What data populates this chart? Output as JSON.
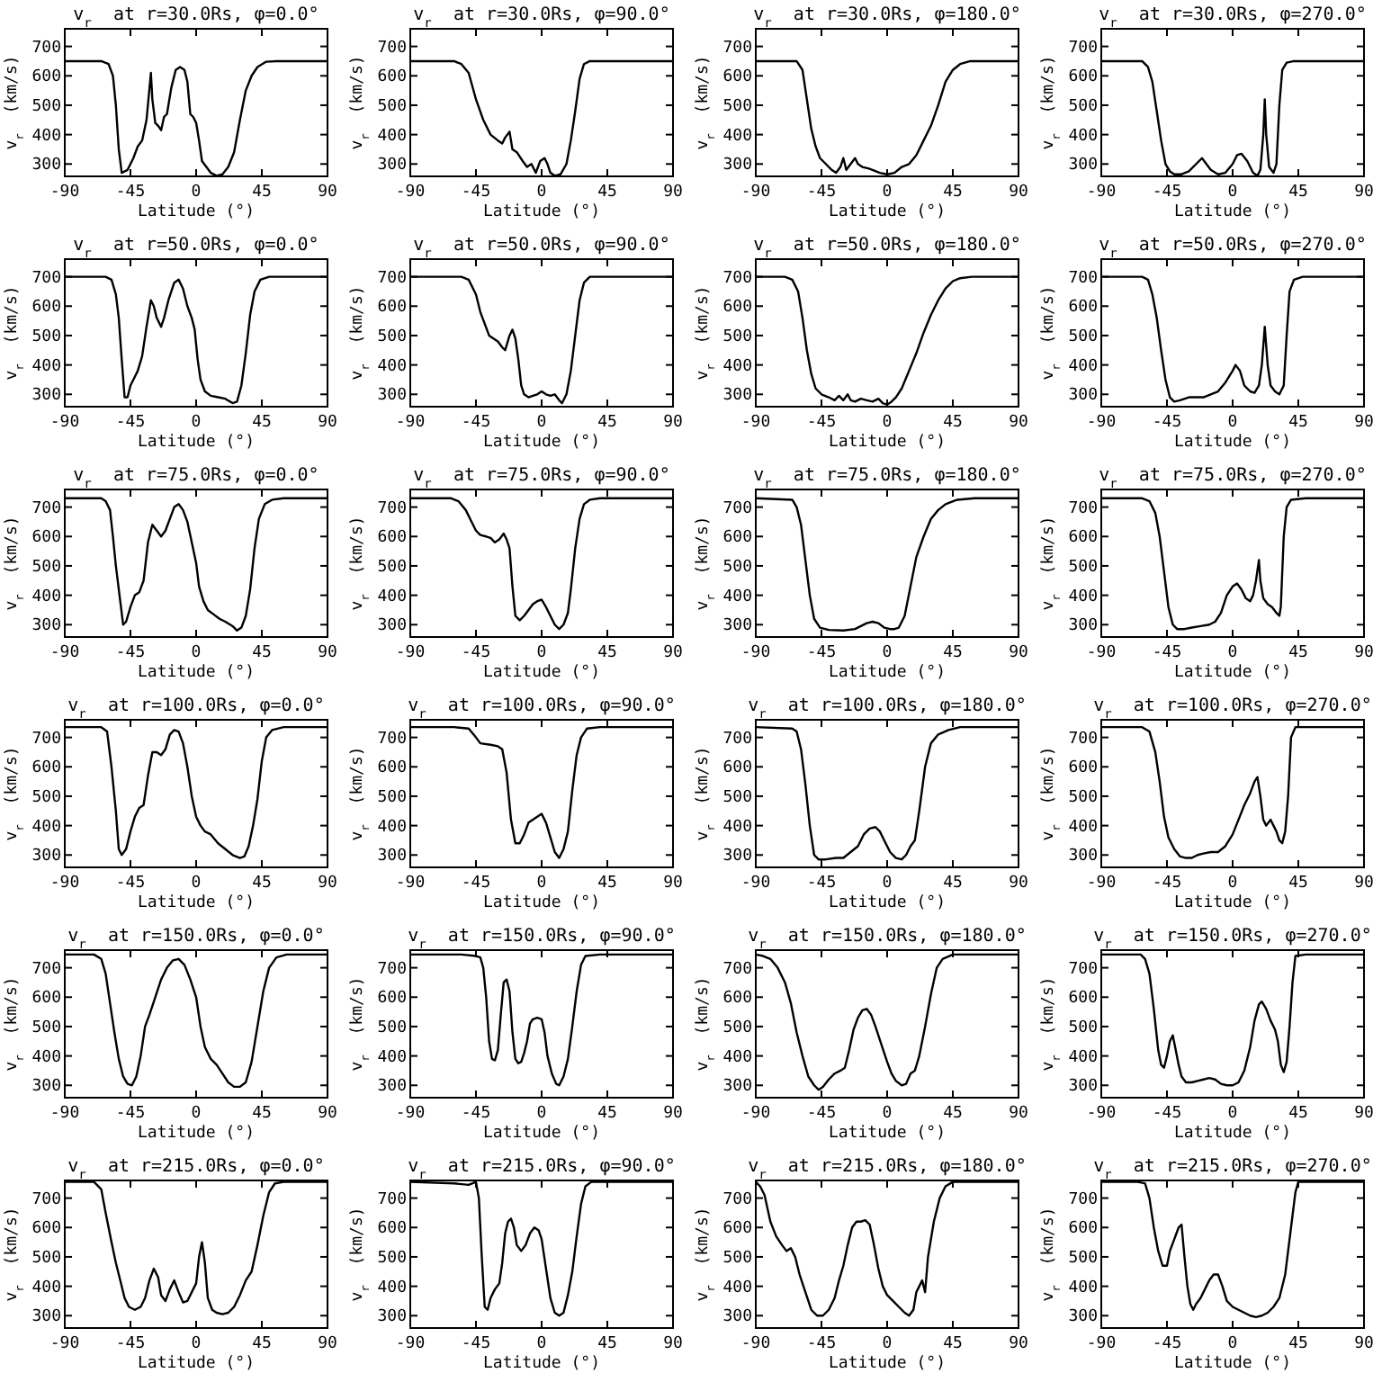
{
  "chart_data": [
    {
      "type": "line",
      "title": "v$_{r}$ at r=30.0Rs, φ=0.0°",
      "xlabel": "Latitude (°)",
      "ylabel": "v$_{r}$ (km/s)",
      "color": "#000000",
      "xlim": [
        -90,
        90
      ],
      "ylim": [
        258,
        760
      ],
      "xticks": [
        -90,
        -45,
        0,
        45,
        90
      ],
      "yticks": [
        300,
        400,
        500,
        600,
        700
      ],
      "x": [
        -90,
        -65,
        -60,
        -57,
        -55,
        -53,
        -51,
        -47,
        -43,
        -40,
        -37,
        -34,
        -31,
        -30,
        -28,
        -26,
        -24,
        -22,
        -20,
        -17,
        -14,
        -11,
        -8,
        -6,
        -4,
        -2,
        0,
        2,
        4,
        7,
        10,
        14,
        18,
        22,
        26,
        30,
        34,
        38,
        42,
        48,
        55,
        90
      ],
      "values": [
        650,
        650,
        640,
        600,
        500,
        350,
        270,
        280,
        320,
        360,
        380,
        450,
        610,
        520,
        440,
        430,
        415,
        460,
        470,
        560,
        620,
        630,
        620,
        580,
        470,
        460,
        440,
        380,
        310,
        290,
        270,
        260,
        265,
        290,
        340,
        450,
        550,
        600,
        630,
        648,
        650,
        650
      ]
    },
    {
      "type": "line",
      "title": "v$_{r}$ at r=30.0Rs, φ=90.0°",
      "xlabel": "Latitude (°)",
      "ylabel": "v$_{r}$ (km/s)",
      "color": "#000000",
      "xlim": [
        -90,
        90
      ],
      "ylim": [
        258,
        760
      ],
      "xticks": [
        -90,
        -45,
        0,
        45,
        90
      ],
      "yticks": [
        300,
        400,
        500,
        600,
        700
      ],
      "x": [
        -90,
        -60,
        -55,
        -50,
        -45,
        -40,
        -35,
        -30,
        -27,
        -25,
        -22,
        -20,
        -17,
        -13,
        -10,
        -7,
        -4,
        -1,
        2,
        4,
        6,
        9,
        13,
        17,
        20,
        23,
        26,
        29,
        33,
        90
      ],
      "values": [
        650,
        650,
        640,
        610,
        520,
        450,
        400,
        380,
        370,
        390,
        410,
        350,
        340,
        310,
        290,
        300,
        270,
        310,
        320,
        300,
        270,
        260,
        265,
        300,
        380,
        480,
        590,
        640,
        650,
        650
      ]
    },
    {
      "type": "line",
      "title": "v$_{r}$ at r=30.0Rs, φ=180.0°",
      "xlabel": "Latitude (°)",
      "ylabel": "v$_{r}$ (km/s)",
      "color": "#000000",
      "xlim": [
        -90,
        90
      ],
      "ylim": [
        258,
        760
      ],
      "xticks": [
        -90,
        -45,
        0,
        45,
        90
      ],
      "yticks": [
        300,
        400,
        500,
        600,
        700
      ],
      "x": [
        -90,
        -62,
        -58,
        -55,
        -52,
        -49,
        -46,
        -42,
        -38,
        -35,
        -32,
        -30,
        -28,
        -25,
        -22,
        -20,
        -17,
        -13,
        -10,
        -5,
        0,
        5,
        10,
        15,
        20,
        25,
        30,
        35,
        40,
        45,
        50,
        57,
        90
      ],
      "values": [
        650,
        650,
        620,
        520,
        420,
        360,
        320,
        300,
        280,
        270,
        290,
        320,
        280,
        300,
        320,
        300,
        290,
        285,
        280,
        270,
        265,
        270,
        290,
        300,
        330,
        380,
        430,
        500,
        580,
        620,
        640,
        650,
        650
      ]
    },
    {
      "type": "line",
      "title": "v$_{r}$ at r=30.0Rs, φ=270.0°",
      "xlabel": "Latitude (°)",
      "ylabel": "v$_{r}$ (km/s)",
      "color": "#000000",
      "xlim": [
        -90,
        90
      ],
      "ylim": [
        258,
        760
      ],
      "xticks": [
        -90,
        -45,
        0,
        45,
        90
      ],
      "yticks": [
        300,
        400,
        500,
        600,
        700
      ],
      "x": [
        -90,
        -62,
        -58,
        -55,
        -52,
        -49,
        -46,
        -43,
        -40,
        -35,
        -30,
        -25,
        -21,
        -18,
        -15,
        -10,
        -5,
        0,
        3,
        6,
        10,
        14,
        17,
        19,
        21,
        22,
        23,
        25,
        28,
        30,
        32,
        34,
        37,
        42,
        90
      ],
      "values": [
        650,
        650,
        630,
        580,
        480,
        380,
        300,
        275,
        265,
        265,
        275,
        300,
        320,
        300,
        280,
        265,
        270,
        300,
        330,
        335,
        310,
        270,
        260,
        280,
        400,
        520,
        400,
        290,
        270,
        300,
        500,
        620,
        645,
        650,
        650
      ]
    },
    {
      "type": "line",
      "title": "v$_{r}$ at r=50.0Rs, φ=0.0°",
      "xlabel": "Latitude (°)",
      "ylabel": "v$_{r}$ (km/s)",
      "color": "#000000",
      "xlim": [
        -90,
        90
      ],
      "ylim": [
        258,
        760
      ],
      "xticks": [
        -90,
        -45,
        0,
        45,
        90
      ],
      "yticks": [
        300,
        400,
        500,
        600,
        700
      ],
      "x": [
        -90,
        -62,
        -58,
        -55,
        -53,
        -51,
        -49,
        -47,
        -45,
        -42,
        -40,
        -37,
        -34,
        -31,
        -29,
        -27,
        -24,
        -22,
        -19,
        -15,
        -12,
        -9,
        -6,
        -3,
        -1,
        1,
        3,
        6,
        10,
        15,
        20,
        25,
        28,
        31,
        34,
        37,
        40,
        44,
        50,
        90
      ],
      "values": [
        700,
        700,
        690,
        640,
        560,
        420,
        290,
        290,
        330,
        360,
        380,
        430,
        530,
        620,
        600,
        560,
        530,
        560,
        620,
        680,
        690,
        660,
        600,
        560,
        520,
        420,
        350,
        310,
        295,
        290,
        285,
        270,
        275,
        330,
        440,
        570,
        650,
        690,
        700,
        700
      ]
    },
    {
      "type": "line",
      "title": "v$_{r}$ at r=50.0Rs, φ=90.0°",
      "xlabel": "Latitude (°)",
      "ylabel": "v$_{r}$ (km/s)",
      "color": "#000000",
      "xlim": [
        -90,
        90
      ],
      "ylim": [
        258,
        760
      ],
      "xticks": [
        -90,
        -45,
        0,
        45,
        90
      ],
      "yticks": [
        300,
        400,
        500,
        600,
        700
      ],
      "x": [
        -90,
        -55,
        -50,
        -45,
        -42,
        -39,
        -36,
        -33,
        -30,
        -27,
        -25,
        -22,
        -20,
        -18,
        -16,
        -14,
        -12,
        -9,
        -6,
        -3,
        0,
        3,
        6,
        9,
        12,
        14,
        17,
        20,
        23,
        26,
        29,
        33,
        90
      ],
      "values": [
        700,
        700,
        690,
        640,
        580,
        540,
        500,
        490,
        480,
        460,
        450,
        500,
        520,
        490,
        420,
        330,
        300,
        290,
        295,
        300,
        310,
        300,
        295,
        300,
        280,
        270,
        300,
        380,
        500,
        620,
        680,
        700,
        700
      ]
    },
    {
      "type": "line",
      "title": "v$_{r}$ at r=50.0Rs, φ=180.0°",
      "xlabel": "Latitude (°)",
      "ylabel": "v$_{r}$ (km/s)",
      "color": "#000000",
      "xlim": [
        -90,
        90
      ],
      "ylim": [
        258,
        760
      ],
      "xticks": [
        -90,
        -45,
        0,
        45,
        90
      ],
      "yticks": [
        300,
        400,
        500,
        600,
        700
      ],
      "x": [
        -90,
        -70,
        -65,
        -61,
        -58,
        -55,
        -52,
        -49,
        -45,
        -40,
        -36,
        -33,
        -30,
        -27,
        -25,
        -22,
        -18,
        -14,
        -10,
        -6,
        -3,
        0,
        3,
        6,
        10,
        15,
        20,
        25,
        30,
        35,
        40,
        45,
        50,
        58,
        90
      ],
      "values": [
        700,
        700,
        690,
        650,
        560,
        450,
        370,
        320,
        300,
        290,
        280,
        295,
        280,
        300,
        280,
        275,
        285,
        280,
        275,
        285,
        270,
        265,
        275,
        290,
        320,
        380,
        440,
        510,
        570,
        620,
        660,
        685,
        695,
        700,
        700
      ]
    },
    {
      "type": "line",
      "title": "v$_{r}$ at r=50.0Rs, φ=270.0°",
      "xlabel": "Latitude (°)",
      "ylabel": "v$_{r}$ (km/s)",
      "color": "#000000",
      "xlim": [
        -90,
        90
      ],
      "ylim": [
        258,
        760
      ],
      "xticks": [
        -90,
        -45,
        0,
        45,
        90
      ],
      "yticks": [
        300,
        400,
        500,
        600,
        700
      ],
      "x": [
        -90,
        -62,
        -58,
        -55,
        -52,
        -49,
        -46,
        -43,
        -40,
        -36,
        -30,
        -25,
        -20,
        -15,
        -10,
        -5,
        0,
        2,
        5,
        8,
        12,
        15,
        18,
        20,
        22,
        24,
        26,
        29,
        32,
        35,
        37,
        39,
        42,
        48,
        90
      ],
      "values": [
        700,
        700,
        690,
        640,
        560,
        450,
        350,
        290,
        275,
        280,
        290,
        290,
        290,
        300,
        310,
        340,
        380,
        400,
        380,
        330,
        310,
        305,
        330,
        400,
        530,
        400,
        330,
        310,
        300,
        330,
        500,
        650,
        690,
        700,
        700
      ]
    },
    {
      "type": "line",
      "title": "v$_{r}$ at r=75.0Rs, φ=0.0°",
      "xlabel": "Latitude (°)",
      "ylabel": "v$_{r}$ (km/s)",
      "color": "#000000",
      "xlim": [
        -90,
        90
      ],
      "ylim": [
        258,
        760
      ],
      "xticks": [
        -90,
        -45,
        0,
        45,
        90
      ],
      "yticks": [
        300,
        400,
        500,
        600,
        700
      ],
      "x": [
        -90,
        -65,
        -62,
        -59,
        -57,
        -55,
        -52,
        -50,
        -48,
        -45,
        -42,
        -39,
        -36,
        -33,
        -30,
        -27,
        -24,
        -21,
        -18,
        -15,
        -12,
        -9,
        -6,
        -3,
        0,
        2,
        5,
        8,
        12,
        16,
        20,
        25,
        28,
        31,
        34,
        37,
        40,
        43,
        47,
        52,
        60,
        90
      ],
      "values": [
        730,
        730,
        720,
        690,
        600,
        500,
        380,
        300,
        310,
        360,
        400,
        410,
        450,
        580,
        640,
        620,
        600,
        620,
        660,
        700,
        710,
        690,
        650,
        580,
        510,
        430,
        380,
        350,
        335,
        320,
        310,
        295,
        280,
        290,
        330,
        420,
        560,
        660,
        710,
        725,
        730,
        730
      ]
    },
    {
      "type": "line",
      "title": "v$_{r}$ at r=75.0Rs, φ=90.0°",
      "xlabel": "Latitude (°)",
      "ylabel": "v$_{r}$ (km/s)",
      "color": "#000000",
      "xlim": [
        -90,
        90
      ],
      "ylim": [
        258,
        760
      ],
      "xticks": [
        -90,
        -45,
        0,
        45,
        90
      ],
      "yticks": [
        300,
        400,
        500,
        600,
        700
      ],
      "x": [
        -90,
        -62,
        -57,
        -52,
        -48,
        -45,
        -42,
        -38,
        -35,
        -32,
        -29,
        -26,
        -24,
        -22,
        -20,
        -18,
        -15,
        -12,
        -9,
        -6,
        -3,
        0,
        3,
        6,
        9,
        12,
        15,
        18,
        20,
        23,
        26,
        29,
        33,
        40,
        90
      ],
      "values": [
        730,
        730,
        720,
        690,
        650,
        620,
        605,
        600,
        595,
        580,
        590,
        610,
        590,
        560,
        430,
        330,
        315,
        330,
        350,
        370,
        380,
        385,
        360,
        330,
        300,
        285,
        300,
        340,
        420,
        560,
        660,
        710,
        725,
        730,
        730
      ]
    },
    {
      "type": "line",
      "title": "v$_{r}$ at r=75.0Rs, φ=180.0°",
      "xlabel": "Latitude (°)",
      "ylabel": "v$_{r}$ (km/s)",
      "color": "#000000",
      "xlim": [
        -90,
        90
      ],
      "ylim": [
        258,
        760
      ],
      "xticks": [
        -90,
        -45,
        0,
        45,
        90
      ],
      "yticks": [
        300,
        400,
        500,
        600,
        700
      ],
      "x": [
        -90,
        -65,
        -62,
        -59,
        -56,
        -53,
        -50,
        -46,
        -40,
        -30,
        -22,
        -18,
        -14,
        -10,
        -6,
        -2,
        2,
        5,
        8,
        12,
        16,
        20,
        25,
        30,
        35,
        40,
        48,
        60,
        90
      ],
      "values": [
        730,
        725,
        700,
        640,
        520,
        400,
        320,
        290,
        282,
        280,
        285,
        295,
        305,
        310,
        305,
        290,
        285,
        285,
        290,
        330,
        430,
        530,
        600,
        660,
        690,
        710,
        725,
        730,
        730
      ]
    },
    {
      "type": "line",
      "title": "v$_{r}$ at r=75.0Rs, φ=270.0°",
      "xlabel": "Latitude (°)",
      "ylabel": "v$_{r}$ (km/s)",
      "color": "#000000",
      "xlim": [
        -90,
        90
      ],
      "ylim": [
        258,
        760
      ],
      "xticks": [
        -90,
        -45,
        0,
        45,
        90
      ],
      "yticks": [
        300,
        400,
        500,
        600,
        700
      ],
      "x": [
        -90,
        -62,
        -57,
        -53,
        -50,
        -47,
        -44,
        -41,
        -38,
        -33,
        -28,
        -22,
        -16,
        -12,
        -8,
        -4,
        0,
        3,
        6,
        9,
        12,
        14,
        16,
        18,
        19,
        21,
        24,
        27,
        30,
        32,
        33,
        35,
        37,
        40,
        50,
        90
      ],
      "values": [
        730,
        730,
        720,
        680,
        600,
        480,
        360,
        300,
        285,
        285,
        290,
        295,
        300,
        310,
        340,
        400,
        430,
        440,
        420,
        390,
        380,
        400,
        450,
        520,
        450,
        390,
        370,
        360,
        340,
        330,
        360,
        600,
        700,
        725,
        730,
        730
      ]
    },
    {
      "type": "line",
      "title": "v$_{r}$ at r=100.0Rs, φ=0.0°",
      "xlabel": "Latitude (°)",
      "ylabel": "v$_{r}$ (km/s)",
      "color": "#000000",
      "xlim": [
        -90,
        90
      ],
      "ylim": [
        258,
        760
      ],
      "xticks": [
        -90,
        -45,
        0,
        45,
        90
      ],
      "yticks": [
        300,
        400,
        500,
        600,
        700
      ],
      "x": [
        -90,
        -65,
        -61,
        -58,
        -55,
        -53,
        -51,
        -48,
        -45,
        -42,
        -39,
        -36,
        -33,
        -30,
        -27,
        -24,
        -21,
        -18,
        -15,
        -12,
        -9,
        -6,
        -3,
        0,
        3,
        6,
        10,
        15,
        20,
        25,
        30,
        33,
        36,
        39,
        42,
        45,
        48,
        52,
        60,
        90
      ],
      "values": [
        735,
        735,
        720,
        600,
        450,
        320,
        300,
        320,
        380,
        430,
        460,
        470,
        570,
        650,
        650,
        640,
        660,
        710,
        725,
        720,
        680,
        600,
        500,
        430,
        400,
        380,
        370,
        340,
        320,
        300,
        290,
        295,
        330,
        400,
        490,
        620,
        700,
        725,
        735,
        735
      ]
    },
    {
      "type": "line",
      "title": "v$_{r}$ at r=100.0Rs, φ=90.0°",
      "xlabel": "Latitude (°)",
      "ylabel": "v$_{r}$ (km/s)",
      "color": "#000000",
      "xlim": [
        -90,
        90
      ],
      "ylim": [
        258,
        760
      ],
      "xticks": [
        -90,
        -45,
        0,
        45,
        90
      ],
      "yticks": [
        300,
        400,
        500,
        600,
        700
      ],
      "x": [
        -90,
        -60,
        -50,
        -45,
        -42,
        -35,
        -30,
        -27,
        -24,
        -21,
        -18,
        -15,
        -12,
        -9,
        -6,
        -3,
        0,
        3,
        6,
        9,
        12,
        15,
        18,
        21,
        24,
        27,
        31,
        40,
        90
      ],
      "values": [
        735,
        735,
        730,
        700,
        680,
        675,
        670,
        660,
        580,
        420,
        340,
        340,
        370,
        410,
        420,
        430,
        440,
        410,
        360,
        310,
        290,
        320,
        380,
        520,
        640,
        700,
        730,
        735,
        735
      ]
    },
    {
      "type": "line",
      "title": "v$_{r}$ at r=100.0Rs, φ=180.0°",
      "xlabel": "Latitude (°)",
      "ylabel": "v$_{r}$ (km/s)",
      "color": "#000000",
      "xlim": [
        -90,
        90
      ],
      "ylim": [
        258,
        760
      ],
      "xticks": [
        -90,
        -45,
        0,
        45,
        90
      ],
      "yticks": [
        300,
        400,
        500,
        600,
        700
      ],
      "x": [
        -90,
        -65,
        -62,
        -59,
        -56,
        -53,
        -50,
        -47,
        -42,
        -35,
        -30,
        -25,
        -20,
        -16,
        -12,
        -8,
        -5,
        -2,
        2,
        6,
        10,
        13,
        16,
        19,
        22,
        26,
        30,
        35,
        42,
        50,
        90
      ],
      "values": [
        735,
        730,
        720,
        660,
        540,
        400,
        300,
        285,
        285,
        290,
        290,
        310,
        330,
        370,
        390,
        395,
        380,
        350,
        310,
        290,
        285,
        300,
        330,
        350,
        450,
        600,
        680,
        710,
        725,
        735,
        735
      ]
    },
    {
      "type": "line",
      "title": "v$_{r}$ at r=100.0Rs, φ=270.0°",
      "xlabel": "Latitude (°)",
      "ylabel": "v$_{r}$ (km/s)",
      "color": "#000000",
      "xlim": [
        -90,
        90
      ],
      "ylim": [
        258,
        760
      ],
      "xticks": [
        -90,
        -45,
        0,
        45,
        90
      ],
      "yticks": [
        300,
        400,
        500,
        600,
        700
      ],
      "x": [
        -90,
        -62,
        -57,
        -53,
        -50,
        -47,
        -44,
        -40,
        -36,
        -32,
        -28,
        -24,
        -20,
        -15,
        -10,
        -5,
        0,
        4,
        8,
        12,
        15,
        17,
        19,
        21,
        23,
        26,
        28,
        30,
        32,
        34,
        36,
        38,
        40,
        43,
        90
      ],
      "values": [
        735,
        735,
        720,
        650,
        550,
        430,
        360,
        320,
        295,
        290,
        290,
        300,
        305,
        310,
        310,
        330,
        370,
        420,
        470,
        510,
        550,
        565,
        500,
        420,
        400,
        420,
        400,
        380,
        350,
        340,
        380,
        500,
        700,
        735,
        735
      ]
    },
    {
      "type": "line",
      "title": "v$_{r}$ at r=150.0Rs, φ=0.0°",
      "xlabel": "Latitude (°)",
      "ylabel": "v$_{r}$ (km/s)",
      "color": "#000000",
      "xlim": [
        -90,
        90
      ],
      "ylim": [
        258,
        760
      ],
      "xticks": [
        -90,
        -45,
        0,
        45,
        90
      ],
      "yticks": [
        300,
        400,
        500,
        600,
        700
      ],
      "x": [
        -90,
        -70,
        -65,
        -62,
        -59,
        -56,
        -53,
        -50,
        -47,
        -44,
        -41,
        -38,
        -35,
        -32,
        -28,
        -24,
        -20,
        -16,
        -12,
        -8,
        -4,
        0,
        3,
        6,
        10,
        14,
        18,
        22,
        26,
        30,
        34,
        38,
        42,
        46,
        50,
        55,
        62,
        90
      ],
      "values": [
        745,
        745,
        730,
        680,
        580,
        480,
        390,
        330,
        305,
        300,
        330,
        400,
        500,
        540,
        600,
        660,
        700,
        725,
        730,
        710,
        660,
        600,
        500,
        430,
        390,
        370,
        340,
        310,
        295,
        295,
        310,
        380,
        500,
        620,
        700,
        735,
        745,
        745
      ]
    },
    {
      "type": "line",
      "title": "v$_{r}$ at r=150.0Rs, φ=90.0°",
      "xlabel": "Latitude (°)",
      "ylabel": "v$_{r}$ (km/s)",
      "color": "#000000",
      "xlim": [
        -90,
        90
      ],
      "ylim": [
        258,
        760
      ],
      "xticks": [
        -90,
        -45,
        0,
        45,
        90
      ],
      "yticks": [
        300,
        400,
        500,
        600,
        700
      ],
      "x": [
        -90,
        -55,
        -45,
        -42,
        -40,
        -38,
        -36,
        -34,
        -32,
        -30,
        -28,
        -26,
        -24,
        -22,
        -20,
        -18,
        -16,
        -14,
        -12,
        -10,
        -8,
        -6,
        -3,
        0,
        2,
        4,
        7,
        10,
        12,
        15,
        18,
        21,
        24,
        27,
        30,
        40,
        90
      ],
      "values": [
        745,
        745,
        740,
        735,
        700,
        600,
        450,
        390,
        385,
        420,
        540,
        650,
        660,
        620,
        480,
        390,
        375,
        380,
        410,
        450,
        510,
        525,
        530,
        525,
        480,
        400,
        340,
        305,
        300,
        330,
        390,
        500,
        620,
        710,
        740,
        745,
        745
      ]
    },
    {
      "type": "line",
      "title": "v$_{r}$ at r=150.0Rs, φ=180.0°",
      "xlabel": "Latitude (°)",
      "ylabel": "v$_{r}$ (km/s)",
      "color": "#000000",
      "xlim": [
        -90,
        90
      ],
      "ylim": [
        258,
        760
      ],
      "xticks": [
        -90,
        -45,
        0,
        45,
        90
      ],
      "yticks": [
        300,
        400,
        500,
        600,
        700
      ],
      "x": [
        -90,
        -85,
        -80,
        -75,
        -70,
        -66,
        -62,
        -58,
        -54,
        -50,
        -47,
        -44,
        -40,
        -36,
        -32,
        -29,
        -26,
        -23,
        -20,
        -17,
        -14,
        -11,
        -8,
        -4,
        0,
        3,
        6,
        10,
        13,
        16,
        19,
        22,
        26,
        30,
        34,
        38,
        45,
        90
      ],
      "values": [
        745,
        740,
        730,
        700,
        650,
        580,
        480,
        400,
        330,
        300,
        285,
        295,
        320,
        340,
        350,
        360,
        420,
        490,
        530,
        555,
        560,
        540,
        500,
        440,
        380,
        340,
        315,
        300,
        305,
        340,
        350,
        400,
        500,
        610,
        700,
        730,
        745,
        745
      ]
    },
    {
      "type": "line",
      "title": "v$_{r}$ at r=150.0Rs, φ=270.0°",
      "xlabel": "Latitude (°)",
      "ylabel": "v$_{r}$ (km/s)",
      "color": "#000000",
      "xlim": [
        -90,
        90
      ],
      "ylim": [
        258,
        760
      ],
      "xticks": [
        -90,
        -45,
        0,
        45,
        90
      ],
      "yticks": [
        300,
        400,
        500,
        600,
        700
      ],
      "x": [
        -90,
        -63,
        -60,
        -57,
        -54,
        -51,
        -49,
        -47,
        -45,
        -43,
        -41,
        -39,
        -37,
        -35,
        -32,
        -28,
        -24,
        -20,
        -16,
        -12,
        -8,
        -4,
        0,
        4,
        8,
        12,
        15,
        18,
        20,
        23,
        26,
        29,
        31,
        33,
        35,
        37,
        39,
        41,
        43,
        50,
        90
      ],
      "values": [
        745,
        745,
        730,
        680,
        560,
        420,
        370,
        360,
        400,
        450,
        470,
        420,
        370,
        330,
        310,
        310,
        315,
        320,
        325,
        320,
        305,
        300,
        300,
        310,
        350,
        430,
        520,
        575,
        585,
        560,
        520,
        490,
        450,
        370,
        345,
        380,
        500,
        650,
        740,
        745,
        745
      ]
    },
    {
      "type": "line",
      "title": "v$_{r}$ at r=215.0Rs, φ=0.0°",
      "xlabel": "Latitude (°)",
      "ylabel": "v$_{r}$ (km/s)",
      "color": "#000000",
      "xlim": [
        -90,
        90
      ],
      "ylim": [
        258,
        760
      ],
      "xticks": [
        -90,
        -45,
        0,
        45,
        90
      ],
      "yticks": [
        300,
        400,
        500,
        600,
        700
      ],
      "x": [
        -90,
        -70,
        -65,
        -62,
        -58,
        -55,
        -52,
        -49,
        -46,
        -42,
        -38,
        -35,
        -32,
        -29,
        -26,
        -24,
        -21,
        -18,
        -15,
        -12,
        -9,
        -6,
        -3,
        0,
        2,
        4,
        6,
        8,
        11,
        14,
        18,
        22,
        26,
        30,
        34,
        38,
        42,
        46,
        50,
        54,
        60,
        90
      ],
      "values": [
        755,
        755,
        730,
        650,
        550,
        480,
        420,
        360,
        330,
        320,
        330,
        360,
        420,
        460,
        430,
        370,
        350,
        390,
        420,
        380,
        345,
        350,
        380,
        410,
        500,
        550,
        480,
        360,
        320,
        310,
        305,
        310,
        330,
        370,
        420,
        450,
        540,
        640,
        720,
        750,
        755,
        755
      ]
    },
    {
      "type": "line",
      "title": "v$_{r}$ at r=215.0Rs, φ=90.0°",
      "xlabel": "Latitude (°)",
      "ylabel": "v$_{r}$ (km/s)",
      "color": "#000000",
      "xlim": [
        -90,
        90
      ],
      "ylim": [
        258,
        760
      ],
      "xticks": [
        -90,
        -45,
        0,
        45,
        90
      ],
      "yticks": [
        300,
        400,
        500,
        600,
        700
      ],
      "x": [
        -90,
        -60,
        -50,
        -45,
        -43,
        -41,
        -39,
        -37,
        -35,
        -32,
        -29,
        -27,
        -25,
        -23,
        -21,
        -19,
        -17,
        -14,
        -11,
        -8,
        -5,
        -2,
        0,
        3,
        6,
        9,
        12,
        15,
        18,
        21,
        24,
        27,
        30,
        34,
        90
      ],
      "values": [
        755,
        750,
        745,
        755,
        700,
        500,
        330,
        320,
        360,
        390,
        410,
        480,
        580,
        620,
        630,
        600,
        540,
        520,
        540,
        580,
        600,
        590,
        560,
        460,
        360,
        310,
        300,
        310,
        370,
        450,
        570,
        680,
        740,
        755,
        755
      ]
    },
    {
      "type": "line",
      "title": "v$_{r}$ at r=215.0Rs, φ=180.0°",
      "xlabel": "Latitude (°)",
      "ylabel": "v$_{r}$ (km/s)",
      "color": "#000000",
      "xlim": [
        -90,
        90
      ],
      "ylim": [
        258,
        760
      ],
      "xticks": [
        -90,
        -45,
        0,
        45,
        90
      ],
      "yticks": [
        300,
        400,
        500,
        600,
        700
      ],
      "x": [
        -90,
        -87,
        -84,
        -80,
        -76,
        -72,
        -69,
        -66,
        -63,
        -60,
        -56,
        -52,
        -48,
        -44,
        -40,
        -36,
        -33,
        -30,
        -27,
        -24,
        -21,
        -18,
        -15,
        -12,
        -9,
        -6,
        -3,
        0,
        4,
        8,
        12,
        15,
        18,
        20,
        22,
        24,
        26,
        28,
        32,
        36,
        40,
        45,
        90
      ],
      "values": [
        755,
        740,
        710,
        620,
        570,
        540,
        520,
        530,
        500,
        440,
        380,
        320,
        300,
        300,
        320,
        360,
        420,
        470,
        540,
        600,
        620,
        620,
        625,
        610,
        540,
        460,
        400,
        370,
        350,
        330,
        310,
        300,
        320,
        380,
        400,
        420,
        380,
        500,
        620,
        700,
        740,
        755,
        755
      ]
    },
    {
      "type": "line",
      "title": "v$_{r}$ at r=215.0Rs, φ=270.0°",
      "xlabel": "Latitude (°)",
      "ylabel": "v$_{r}$ (km/s)",
      "color": "#000000",
      "xlim": [
        -90,
        90
      ],
      "ylim": [
        258,
        760
      ],
      "xticks": [
        -90,
        -45,
        0,
        45,
        90
      ],
      "yticks": [
        300,
        400,
        500,
        600,
        700
      ],
      "x": [
        -90,
        -65,
        -60,
        -57,
        -54,
        -51,
        -48,
        -45,
        -43,
        -40,
        -37,
        -35,
        -33,
        -31,
        -29,
        -27,
        -25,
        -22,
        -19,
        -16,
        -13,
        -10,
        -7,
        -4,
        0,
        4,
        8,
        12,
        16,
        20,
        24,
        28,
        32,
        36,
        40,
        43,
        45,
        90
      ],
      "values": [
        755,
        755,
        750,
        700,
        600,
        520,
        470,
        470,
        520,
        560,
        600,
        610,
        500,
        400,
        340,
        320,
        340,
        360,
        390,
        420,
        440,
        440,
        400,
        350,
        330,
        320,
        310,
        300,
        295,
        300,
        310,
        330,
        360,
        440,
        600,
        720,
        755,
        755
      ]
    }
  ]
}
